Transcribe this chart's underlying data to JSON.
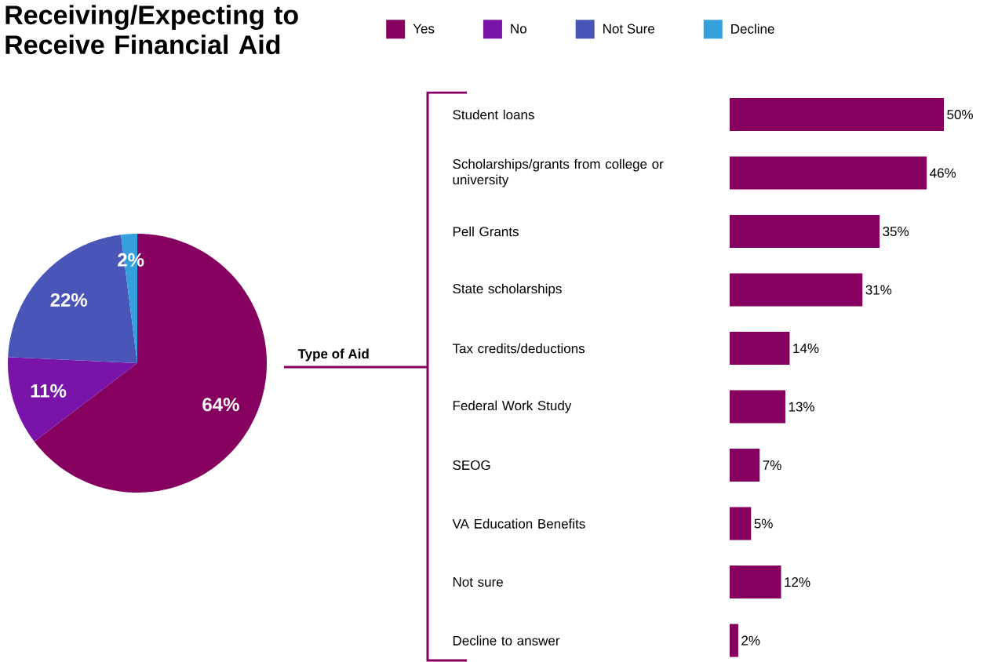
{
  "chart_data": [
    {
      "type": "pie",
      "title": "Receiving/Expecting to Receive Financial Aid",
      "categories": [
        "Yes",
        "No",
        "Not Sure",
        "Decline"
      ],
      "values": [
        64,
        11,
        22,
        2
      ],
      "colors": [
        "#85005f",
        "#7a14a8",
        "#4a55b8",
        "#35a0dc"
      ],
      "value_labels": [
        "64%",
        "11%",
        "22%",
        "2%"
      ],
      "legend": "top"
    },
    {
      "type": "bar",
      "orientation": "horizontal",
      "ylabel": "Type of Aid",
      "categories": [
        "Student loans",
        "Scholarships/grants from college or university",
        "Pell Grants",
        "State scholarships",
        "Tax credits/deductions",
        "Federal Work Study",
        "SEOG",
        "VA Education Benefits",
        "Not sure",
        "Decline to answer"
      ],
      "values": [
        50,
        46,
        35,
        31,
        14,
        13,
        7,
        5,
        12,
        2
      ],
      "color": "#85005f",
      "value_labels": [
        "50%",
        "46%",
        "35%",
        "31%",
        "14%",
        "13%",
        "7%",
        "5%",
        "12%",
        "2%"
      ]
    }
  ]
}
